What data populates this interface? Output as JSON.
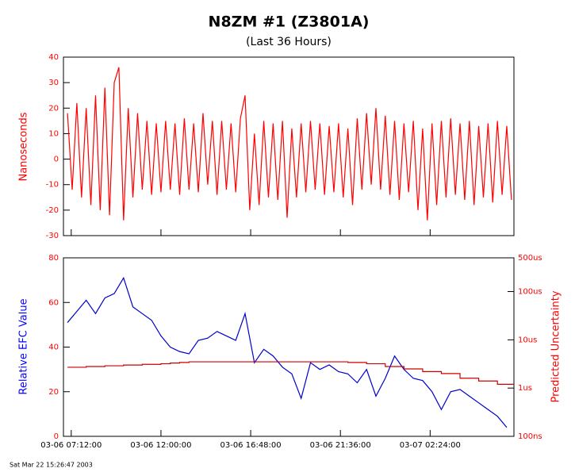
{
  "chart_data": [
    {
      "type": "line",
      "title": "N8ZM  #1 (Z3801A)",
      "subtitle": "(Last 36 Hours)",
      "ylabel": "Nanoseconds",
      "ylim": [
        -30,
        40
      ],
      "yticks": [
        -30,
        -20,
        -10,
        0,
        10,
        20,
        30,
        40
      ],
      "xlim": [
        "03-06 06:47:00",
        "03-07 06:53:00"
      ],
      "x": [
        "03-06 07:00:00",
        "03-06 07:15:00",
        "03-06 07:30:00",
        "03-06 07:45:00",
        "03-06 08:00:00",
        "03-06 08:15:00",
        "03-06 08:30:00",
        "03-06 08:45:00",
        "03-06 09:00:00",
        "03-06 09:15:00",
        "03-06 09:30:00",
        "03-06 09:45:00",
        "03-06 10:00:00",
        "03-06 10:15:00",
        "03-06 10:30:00",
        "03-06 10:45:00",
        "03-06 11:00:00",
        "03-06 11:15:00",
        "03-06 11:30:00",
        "03-06 11:45:00",
        "03-06 12:00:00",
        "03-06 12:15:00",
        "03-06 12:30:00",
        "03-06 12:45:00",
        "03-06 13:00:00",
        "03-06 13:15:00",
        "03-06 13:30:00",
        "03-06 13:45:00",
        "03-06 14:00:00",
        "03-06 14:15:00",
        "03-06 14:30:00",
        "03-06 14:45:00",
        "03-06 15:00:00",
        "03-06 15:15:00",
        "03-06 15:30:00",
        "03-06 15:45:00",
        "03-06 16:00:00",
        "03-06 16:15:00",
        "03-06 16:30:00",
        "03-06 16:45:00",
        "03-06 17:00:00",
        "03-06 17:15:00",
        "03-06 17:30:00",
        "03-06 17:45:00",
        "03-06 18:00:00",
        "03-06 18:15:00",
        "03-06 18:30:00",
        "03-06 18:45:00",
        "03-06 19:00:00",
        "03-06 19:15:00",
        "03-06 19:30:00",
        "03-06 19:45:00",
        "03-06 20:00:00",
        "03-06 20:15:00",
        "03-06 20:30:00",
        "03-06 20:45:00",
        "03-06 21:00:00",
        "03-06 21:15:00",
        "03-06 21:30:00",
        "03-06 21:45:00",
        "03-06 22:00:00",
        "03-06 22:15:00",
        "03-06 22:30:00",
        "03-06 22:45:00",
        "03-06 23:00:00",
        "03-06 23:15:00",
        "03-06 23:30:00",
        "03-06 23:45:00",
        "03-07 00:00:00",
        "03-07 00:15:00",
        "03-07 00:30:00",
        "03-07 00:45:00",
        "03-07 01:00:00",
        "03-07 01:15:00",
        "03-07 01:30:00",
        "03-07 01:45:00",
        "03-07 02:00:00",
        "03-07 02:15:00",
        "03-07 02:30:00",
        "03-07 02:45:00",
        "03-07 03:00:00",
        "03-07 03:15:00",
        "03-07 03:30:00",
        "03-07 03:45:00",
        "03-07 04:00:00",
        "03-07 04:15:00",
        "03-07 04:30:00",
        "03-07 04:45:00",
        "03-07 05:00:00",
        "03-07 05:15:00",
        "03-07 05:30:00",
        "03-07 05:45:00",
        "03-07 06:00:00",
        "03-07 06:15:00",
        "03-07 06:30:00",
        "03-07 06:45:00"
      ],
      "series": [
        {
          "color": "#ff0000",
          "values": [
            18,
            -12,
            22,
            -15,
            20,
            -18,
            25,
            -20,
            28,
            -22,
            30,
            36,
            -24,
            20,
            -15,
            18,
            -12,
            15,
            -14,
            14,
            -13,
            15,
            -12,
            14,
            -14,
            16,
            -12,
            14,
            -13,
            18,
            -10,
            15,
            -14,
            15,
            -12,
            14,
            -13,
            16,
            25,
            -20,
            10,
            -18,
            15,
            -15,
            14,
            -16,
            15,
            -23,
            12,
            -15,
            14,
            -13,
            15,
            -12,
            14,
            -14,
            13,
            -13,
            14,
            -15,
            12,
            -18,
            16,
            -12,
            18,
            -10,
            20,
            -12,
            17,
            -14,
            15,
            -16,
            14,
            -13,
            15,
            -20,
            12,
            -24,
            14,
            -18,
            15,
            -15,
            16,
            -14,
            14,
            -16,
            15,
            -18,
            13,
            -15,
            14,
            -17,
            15,
            -14,
            13,
            -16
          ]
        }
      ]
    },
    {
      "type": "line",
      "ylabel": "Relative EFC Value",
      "y2label": "Predicted Uncertainty",
      "ylim": [
        0,
        80
      ],
      "yticks": [
        0,
        20,
        40,
        60,
        80
      ],
      "y2lim": [
        1e-07,
        0.0005
      ],
      "y2log": true,
      "y2ticks": [
        {
          "value": 1e-07,
          "label": "100ns"
        },
        {
          "value": 1e-06,
          "label": "1us"
        },
        {
          "value": 1e-05,
          "label": "10us"
        },
        {
          "value": 0.0001,
          "label": "100us"
        },
        {
          "value": 0.0005,
          "label": "500us"
        }
      ],
      "xlim": [
        "03-06 06:47:00",
        "03-07 06:53:00"
      ],
      "xticks": [
        "03-06 07:12:00",
        "03-06 12:00:00",
        "03-06 16:48:00",
        "03-06 21:36:00",
        "03-07 02:24:00"
      ],
      "x": [
        "03-06 07:00:00",
        "03-06 07:30:00",
        "03-06 08:00:00",
        "03-06 08:30:00",
        "03-06 09:00:00",
        "03-06 09:30:00",
        "03-06 10:00:00",
        "03-06 10:30:00",
        "03-06 11:00:00",
        "03-06 11:30:00",
        "03-06 12:00:00",
        "03-06 12:30:00",
        "03-06 13:00:00",
        "03-06 13:30:00",
        "03-06 14:00:00",
        "03-06 14:30:00",
        "03-06 15:00:00",
        "03-06 15:30:00",
        "03-06 16:00:00",
        "03-06 16:30:00",
        "03-06 17:00:00",
        "03-06 17:30:00",
        "03-06 18:00:00",
        "03-06 18:30:00",
        "03-06 19:00:00",
        "03-06 19:30:00",
        "03-06 20:00:00",
        "03-06 20:30:00",
        "03-06 21:00:00",
        "03-06 21:30:00",
        "03-06 22:00:00",
        "03-06 22:30:00",
        "03-06 23:00:00",
        "03-06 23:30:00",
        "03-07 00:00:00",
        "03-07 00:30:00",
        "03-07 01:00:00",
        "03-07 01:30:00",
        "03-07 02:00:00",
        "03-07 02:30:00",
        "03-07 03:00:00",
        "03-07 03:30:00",
        "03-07 04:00:00",
        "03-07 04:30:00",
        "03-07 05:00:00",
        "03-07 05:30:00",
        "03-07 06:00:00",
        "03-07 06:30:00"
      ],
      "series": [
        {
          "color": "#0000cc",
          "values": [
            51,
            56,
            61,
            55,
            62,
            64,
            71,
            58,
            55,
            52,
            45,
            40,
            38,
            37,
            43,
            44,
            47,
            45,
            43,
            55,
            33,
            39,
            36,
            31,
            28,
            17,
            33,
            30,
            32,
            29,
            28,
            24,
            30,
            18,
            26,
            36,
            30,
            26,
            25,
            20,
            12,
            20,
            21,
            18,
            15,
            12,
            9,
            4
          ]
        },
        {
          "color": "#cc0000",
          "axis": "y2",
          "step": true,
          "values": [
            2.7e-06,
            2.7e-06,
            2.8e-06,
            2.8e-06,
            2.9e-06,
            2.9e-06,
            3e-06,
            3e-06,
            3.1e-06,
            3.1e-06,
            3.2e-06,
            3.3e-06,
            3.4e-06,
            3.5e-06,
            3.5e-06,
            3.5e-06,
            3.5e-06,
            3.5e-06,
            3.5e-06,
            3.5e-06,
            3.5e-06,
            3.5e-06,
            3.5e-06,
            3.5e-06,
            3.5e-06,
            3.5e-06,
            3.5e-06,
            3.5e-06,
            3.5e-06,
            3.5e-06,
            3.4e-06,
            3.4e-06,
            3.2e-06,
            3.2e-06,
            2.8e-06,
            2.8e-06,
            2.5e-06,
            2.5e-06,
            2.2e-06,
            2.2e-06,
            2e-06,
            2e-06,
            1.6e-06,
            1.6e-06,
            1.4e-06,
            1.4e-06,
            1.2e-06,
            1.2e-06
          ]
        }
      ]
    }
  ],
  "footer": "Sat Mar 22 15:26:47 2003"
}
